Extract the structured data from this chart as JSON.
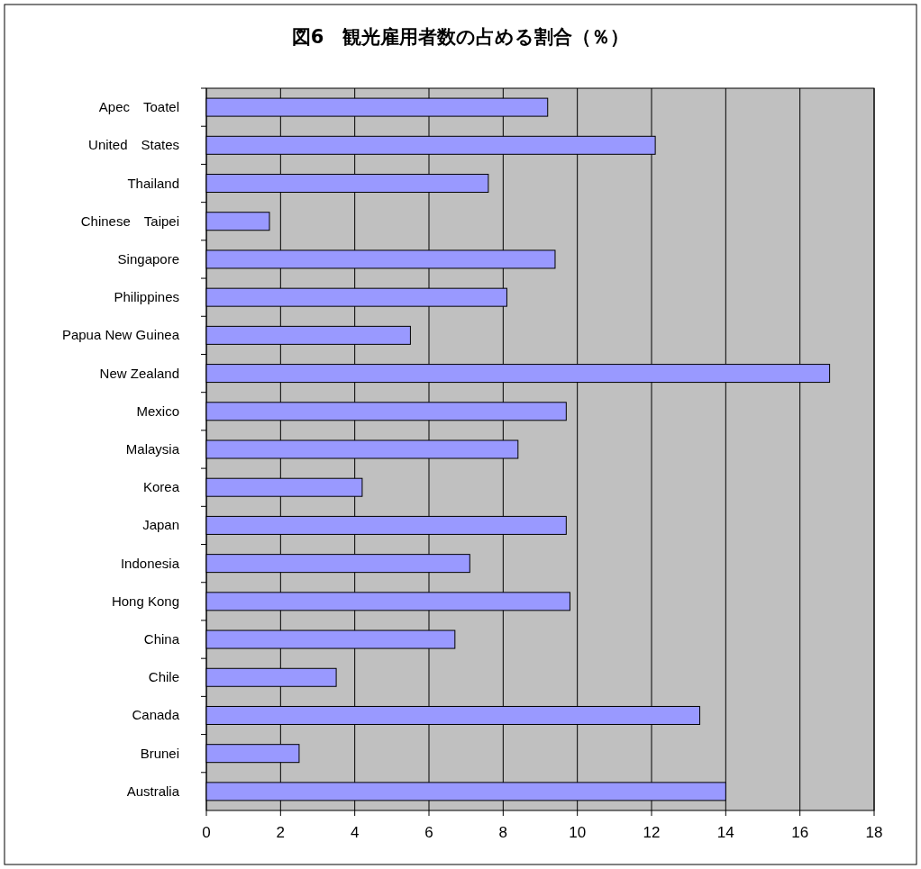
{
  "chart_data": {
    "type": "bar",
    "orientation": "horizontal",
    "title": "図6　観光雇用者数の占める割合（％）",
    "categories": [
      "Apec　Toatel",
      "United　States",
      "Thailand",
      "Chinese　Taipei",
      "Singapore",
      "Philippines",
      "Papua New Guinea",
      "New Zealand",
      "Mexico",
      "Malaysia",
      "Korea",
      "Japan",
      "Indonesia",
      "Hong Kong",
      "China",
      "Chile",
      "Canada",
      "Brunei",
      "Australia"
    ],
    "values": [
      9.2,
      12.1,
      7.6,
      1.7,
      9.4,
      8.1,
      5.5,
      16.8,
      9.7,
      8.4,
      4.2,
      9.7,
      7.1,
      9.8,
      6.7,
      3.5,
      13.3,
      2.5,
      14.0
    ],
    "color": "#9999ff",
    "xlim": [
      0,
      18
    ],
    "xticks": [
      0,
      2,
      4,
      6,
      8,
      10,
      12,
      14,
      16,
      18
    ],
    "grid": "x"
  }
}
